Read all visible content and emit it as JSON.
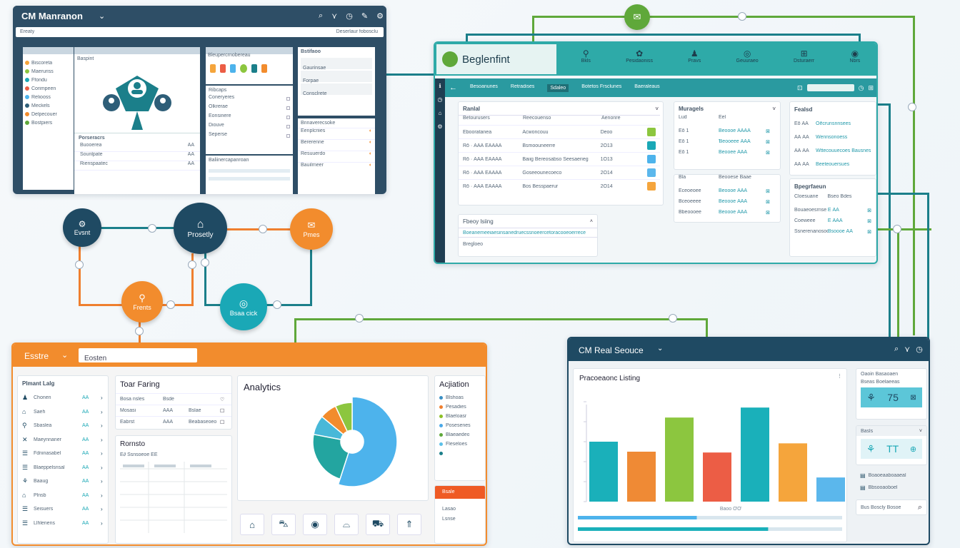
{
  "crm_maintenance": {
    "title": "CM Manranon",
    "toolbar_icons": [
      "search-icon",
      "filter-icon",
      "clock-icon",
      "edit-icon",
      "settings-icon"
    ],
    "address_left": "Ereaty",
    "address_right": "Deserlaur fobosclu",
    "sidebar_items": [
      "Biscoreta",
      "Maeruriss",
      "Ffondu",
      "Corimpeen",
      "Reliooss",
      "Meckels",
      "Delpecouer",
      "Bostpiers"
    ],
    "center_header": "Baspint",
    "center_title": "Porseracrs",
    "center_rows": [
      {
        "label": "Buooerea",
        "value": "ĀĀ"
      },
      {
        "label": "Sounlpate",
        "value": "ĀĀ"
      },
      {
        "label": "Rienspaatec",
        "value": "ĀĀ"
      }
    ],
    "right_top_title": "Bleupercrnobereau",
    "right_mid_title": "Ribcaps",
    "right_mid_rows": [
      "Coneryeres",
      "Olkrerae",
      "Eonsinere",
      "Diouve",
      "Seperse"
    ],
    "right_low_title": "Baliinercapanroan",
    "far_right_title": "Bstifaoo",
    "far_right_rows": [
      "Gaurinsae",
      "Forpae",
      "Consclrete"
    ],
    "far_right_low_title": "Bnnaverecsoke",
    "far_right_low_rows": [
      "Eenplcriies",
      "Bererenne",
      "Resuuerdo",
      "Bauilrneer"
    ]
  },
  "beglenfint": {
    "logo_text": "Beglenfint",
    "top_nav": [
      "Bkls",
      "Pesidaoniss",
      "Pravs",
      "Geuuraeo",
      "Dsturaerr",
      "Nbrs"
    ],
    "tabs": [
      "Besoanunes",
      "Retradises",
      "Sdaleo",
      "Botetos Frsclunes",
      "Baeraleaus"
    ],
    "search_placeholder": "",
    "main_card_title": "Ranlal",
    "main_columns": [
      "Betourusers",
      "Reecouenso",
      "Aenonre"
    ],
    "main_rows": [
      {
        "id": "Ebooratanea",
        "name": "Acwoncouu",
        "num": "Deoo"
      },
      {
        "id": "Rō · ĀĀĀ ÉĀĀĀĀ",
        "name": "Bsmoouneerre",
        "num": "2Ō13"
      },
      {
        "id": "Rō · ĀĀĀ ÉĀĀĀĀ",
        "name": "Baiig Bereosabso Seesaerieg",
        "num": "1Ō13"
      },
      {
        "id": "Rō · ĀĀĀ ÉĀĀĀĀ",
        "name": "Goseeounecoeco",
        "num": "2Ō14"
      },
      {
        "id": "Rō · ĀĀĀ ÉĀĀĀĀ",
        "name": "Bos Besspaerur",
        "num": "2Ō14"
      }
    ],
    "foot_card_title": "Fbeoy lsiing",
    "foot_card_row": "Boeanemeeiaesinsanedruecssnoeercetoracooeoerrece",
    "foot_card_note": "Bregloeo",
    "managers_title": "Muragels",
    "managers_cols": [
      "Lud",
      "Eel"
    ],
    "managers_rows": [
      {
        "a": "Ēō 1",
        "b": "Beoooe ĀĀĀĀ"
      },
      {
        "a": "Ēō 1",
        "b": "Ɓeooeee ĀĀĀ"
      },
      {
        "a": "Ēō 1",
        "b": "Beooee ĀĀĀ"
      }
    ],
    "managers2_cols": [
      "Bla",
      "Beooese Baae"
    ],
    "managers2_rows": [
      {
        "a": "Eceoeoee",
        "b": "Beoooe ĀĀĀ"
      },
      {
        "a": "Bceoeeee",
        "b": "Beoooe ĀĀĀ"
      },
      {
        "a": "Bbeoooee",
        "b": "Beoooe ĀĀĀ"
      }
    ],
    "right_title": "Fealsd",
    "right_rows": [
      {
        "a": "Ēō ĀĀ",
        "b": "Oēcrunsnnsees"
      },
      {
        "a": "ĀĀ ĀĀ",
        "b": "Wennsonoess"
      },
      {
        "a": "ĀĀ ĀĀ",
        "b": "Wttecouuecoes Bausnes"
      },
      {
        "a": "ĀĀ ĀĀ",
        "b": "Beeteouersues"
      }
    ],
    "right2_title": "Bpegrfaeun",
    "right2_cols": [
      "Cloesuane",
      "Bseo Bdes"
    ],
    "right2_rows": [
      {
        "a": "Bouaeoesrnse",
        "b": "Ē ĀĀ"
      },
      {
        "a": "Coeweee",
        "b": "Ē ĀĀĀ"
      },
      {
        "a": "Ssnerenanosocs",
        "b": "Bsoooe ĀĀ"
      }
    ]
  },
  "nodes": {
    "event": "Evsnt",
    "property": "Prosetly",
    "pmes": "Pmes",
    "frents": "Frents",
    "bsaack": "Bsaa cick"
  },
  "estate": {
    "title": "Esstre",
    "search_value": "Eosten",
    "left_card_title": "Plmant Lalg",
    "left_items": [
      "Chonen",
      "Saeh",
      "Sbaslea",
      "Maeynnaner",
      "Fdninasabel",
      "Blaeppelsnsal",
      "Baaug",
      "Plnsb",
      "Seisuers",
      "Llhlenens"
    ],
    "left_values": [
      "ĀĀ",
      "ĀĀ",
      "ĀĀ",
      "ĀĀ",
      "ĀĀ",
      "ĀĀ",
      "ĀĀ",
      "ĀĀ",
      "ĀĀ",
      "ĀĀ"
    ],
    "tour_title": "Toar Faring",
    "tour_rows": [
      {
        "a": "Bosa nsles",
        "b": "Bsde",
        "c": ""
      },
      {
        "a": "Mosasi",
        "b": "ĀĀĀ",
        "c": "Bslae"
      },
      {
        "a": "Eabrst",
        "b": "ĀĀĀ",
        "c": "Beabaseoeo"
      }
    ],
    "rents_title": "Rornsto",
    "rents_header": "Ē∂ Ssnsoeoe ĒĒ",
    "analytics_title": "Analytics",
    "aviation_title": "Acjiation",
    "aviation_items": [
      "Bĺshoas",
      "Pesadies",
      "Blaeloasr",
      "Posesenes",
      "Blaeaedeo",
      "Fleseloes",
      ""
    ],
    "aviation_colors": [
      "#3a8fc4",
      "#ef7f2e",
      "#8cbf26",
      "#4aa8e8",
      "#5fa83a",
      "#5bc0e8",
      "#1b7f8a"
    ],
    "orange_btn": "Bsale",
    "side_rows": [
      "Lasao",
      "Lsnse"
    ],
    "icon_buttons": [
      "house-icon",
      "car-icon",
      "coin-icon",
      "tag-icon",
      "bus-icon",
      "arrow-icon"
    ],
    "pie_colors": [
      "#4db3ec",
      "#23a5a0",
      "#48b8d8",
      "#f28c2d",
      "#8cc63f"
    ],
    "pie_values": [
      55,
      23,
      8,
      7,
      7
    ]
  },
  "realsource": {
    "title": "CM Real Seouce",
    "chart_title": "Pracoeaonc Listing",
    "side_card1_title": "Oaoin Basaoaen",
    "side_card1_sub": "Bseas Boelaeeas",
    "side_card1_value": "75",
    "side_card2_title": "Basls",
    "side_card2_value": "TT",
    "side_foot_rows": [
      "Boaoeaaboaaeal",
      "Bbsooaoboel"
    ],
    "side_search": "Bus Boscly Bosoe",
    "chart_foot": "Baoo ƠƠ"
  },
  "chart_data": {
    "type": "bar",
    "title": "Pracoeaonc Listing",
    "categories": [
      "",
      "",
      "",
      "",
      "",
      "",
      ""
    ],
    "values": [
      72,
      60,
      101,
      59,
      113,
      70,
      29
    ],
    "colors": [
      "#1ab0ba",
      "#ef8a35",
      "#8cc63f",
      "#ec5d45",
      "#1ab0ba",
      "#f5a53c",
      "#5bb7ec"
    ],
    "ylim": [
      0,
      120
    ],
    "xlabel": "",
    "ylabel": "",
    "grid": false,
    "progress": [
      0.45,
      0.72
    ]
  }
}
